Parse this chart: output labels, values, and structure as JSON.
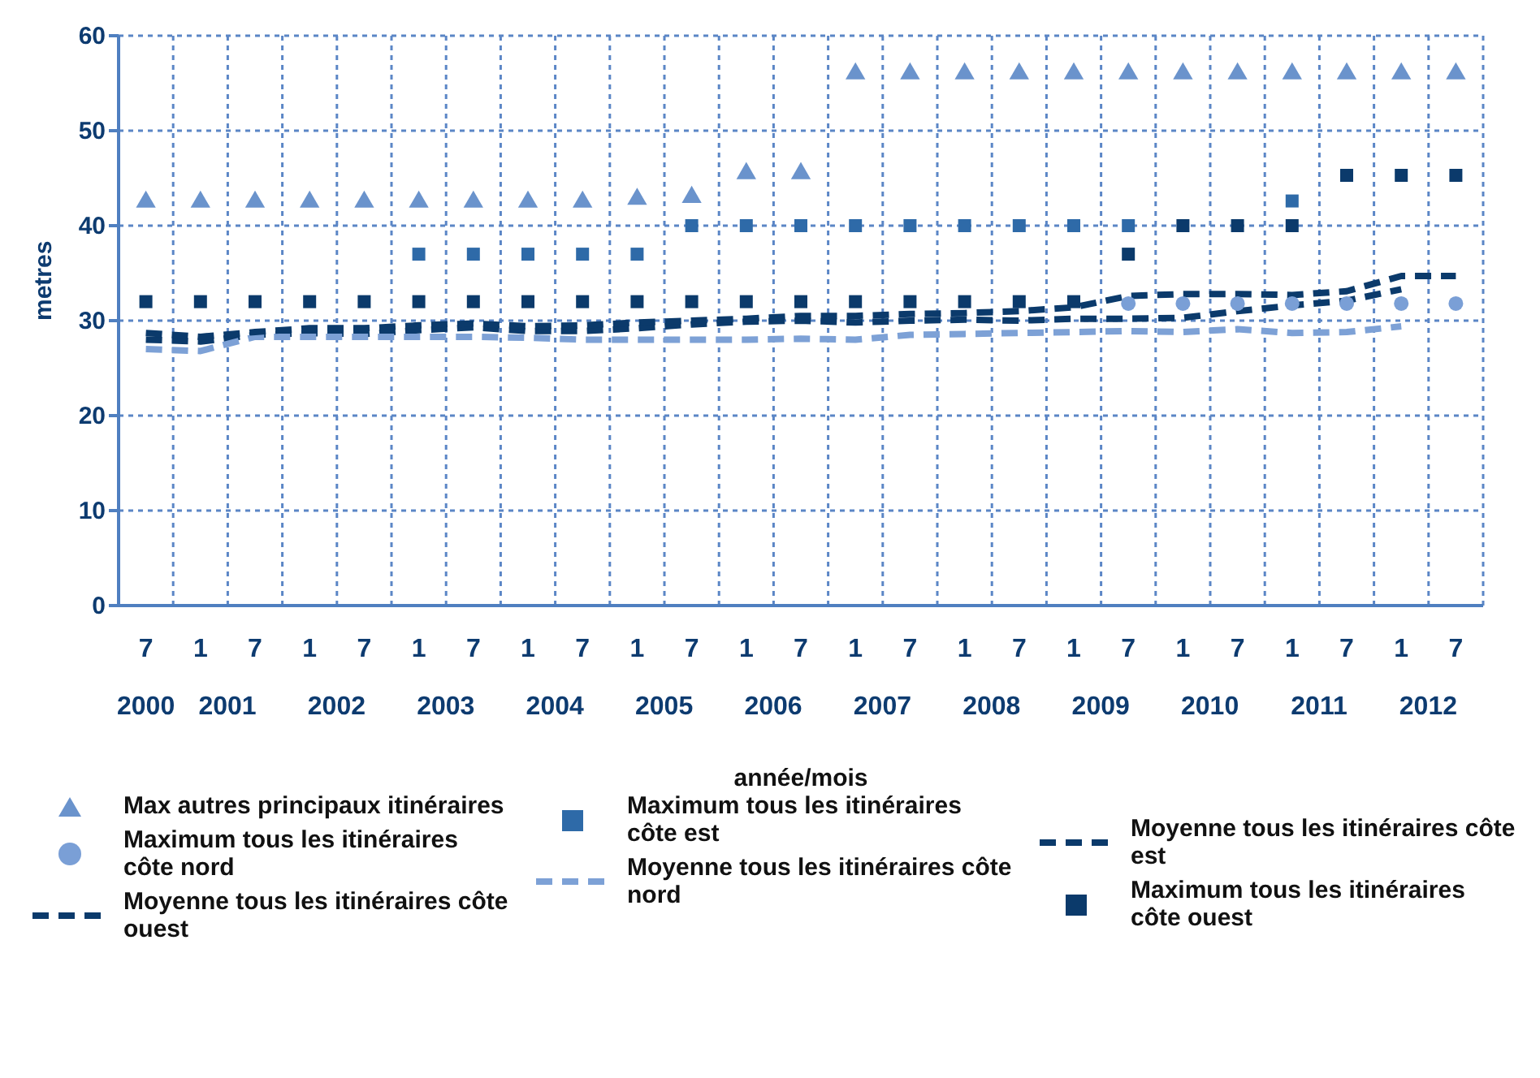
{
  "chart_data": {
    "type": "scatter",
    "xlabel": "année/mois",
    "ylabel": "metres",
    "categories": [
      "7",
      "1",
      "7",
      "1",
      "7",
      "1",
      "7",
      "1",
      "7",
      "1",
      "7",
      "1",
      "7",
      "1",
      "7",
      "1",
      "7",
      "1",
      "7",
      "1",
      "7",
      "1",
      "7",
      "1",
      "7"
    ],
    "annotations": [
      "2000",
      "2001",
      "2002",
      "2003",
      "2004",
      "2005",
      "2006",
      "2007",
      "2008",
      "2009",
      "2010",
      "2011",
      "2012"
    ],
    "ylim": [
      0,
      60
    ],
    "yticks": [
      0,
      10,
      20,
      30,
      40,
      50,
      60
    ],
    "grid": true,
    "legend": "bottom",
    "series": [
      {
        "name": "Max autres principaux itinéraires",
        "marker": "triangle",
        "color": "#6a93cc",
        "values": [
          42.5,
          42.5,
          42.5,
          42.5,
          42.5,
          42.5,
          42.5,
          42.5,
          42.5,
          42.8,
          43,
          45.5,
          45.5,
          56,
          56,
          56,
          56,
          56,
          56,
          56,
          56,
          56,
          56,
          56,
          56
        ]
      },
      {
        "name": "Maximum tous les itinéraires côte nord",
        "marker": "circle",
        "color": "#7a9fd6",
        "values": [
          null,
          null,
          null,
          null,
          null,
          null,
          null,
          null,
          null,
          null,
          null,
          null,
          null,
          null,
          null,
          null,
          null,
          null,
          31.8,
          31.8,
          31.8,
          31.8,
          31.8,
          31.8,
          31.8
        ]
      },
      {
        "name": "Moyenne tous les itinéraires côte ouest",
        "type": "line",
        "line_style": "dashed",
        "marker": "none",
        "color": "#0b3a6b",
        "values": [
          28,
          27.8,
          28.5,
          28.7,
          28.6,
          29,
          29.3,
          28.9,
          28.9,
          29.2,
          29.6,
          29.9,
          30,
          29.8,
          30,
          30.1,
          30,
          30.2,
          30.2,
          30.3,
          31,
          31.6,
          32.1,
          33.3,
          null
        ]
      },
      {
        "name": "Maximum tous les itinéraires côte est",
        "marker": "square",
        "color": "#2e6aa8",
        "values": [
          null,
          null,
          null,
          null,
          null,
          37,
          37,
          37,
          37,
          37,
          40,
          40,
          40,
          40,
          40,
          40,
          40,
          40,
          40,
          null,
          null,
          42.6,
          null,
          null,
          null
        ]
      },
      {
        "name": "Moyenne tous les itinéraires côte nord",
        "type": "line",
        "line_style": "dashed",
        "marker": "none",
        "color": "#7da1d6",
        "values": [
          27,
          26.8,
          28.3,
          28.3,
          28.3,
          28.3,
          28.3,
          28.2,
          28,
          28,
          28,
          28,
          28.1,
          28,
          28.5,
          28.6,
          28.7,
          28.8,
          28.9,
          28.8,
          29.1,
          28.7,
          28.8,
          29.4,
          null
        ]
      },
      {
        "name": "Moyenne tous les itinéraires côte est",
        "type": "line",
        "line_style": "dashed",
        "marker": "none",
        "color": "#0b3a6b",
        "values": [
          28.7,
          28.3,
          28.8,
          29.2,
          29.2,
          29.5,
          29.7,
          29.4,
          29.5,
          29.8,
          30,
          30.2,
          30.5,
          30.5,
          30.7,
          30.8,
          31,
          31.4,
          32.6,
          32.8,
          32.8,
          32.7,
          33.1,
          34.7,
          34.7
        ]
      },
      {
        "name": "Maximum tous les itinéraires côte ouest",
        "marker": "square",
        "color": "#0b3a6b",
        "values": [
          32,
          32,
          32,
          32,
          32,
          32,
          32,
          32,
          32,
          32,
          32,
          32,
          32,
          32,
          32,
          32,
          32,
          32,
          37,
          40,
          40,
          40,
          45.3,
          45.3,
          45.3
        ]
      }
    ]
  }
}
